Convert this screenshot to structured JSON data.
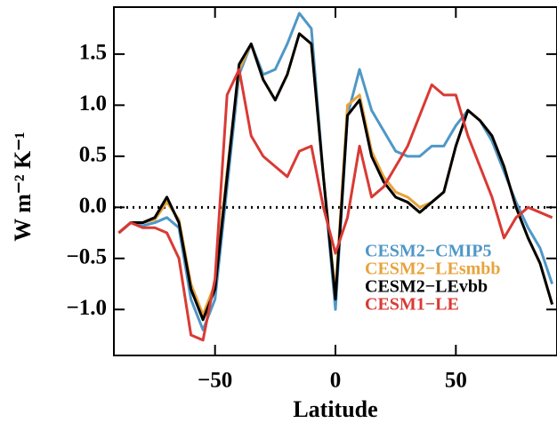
{
  "chart_data": {
    "type": "line",
    "xlabel": "Latitude",
    "ylabel": "W m⁻² K⁻¹",
    "x": [
      -90,
      -85,
      -80,
      -75,
      -70,
      -65,
      -60,
      -55,
      -50,
      -45,
      -40,
      -35,
      -30,
      -25,
      -20,
      -15,
      -10,
      -5,
      0,
      5,
      10,
      15,
      20,
      25,
      30,
      35,
      40,
      45,
      50,
      55,
      60,
      65,
      70,
      75,
      80,
      85,
      90
    ],
    "series": [
      {
        "name": "CESM2−CMIP5",
        "color": "#4f97c7",
        "values": [
          -0.25,
          -0.15,
          -0.18,
          -0.15,
          -0.1,
          -0.2,
          -0.9,
          -1.2,
          -0.9,
          0.2,
          1.3,
          1.6,
          1.3,
          1.35,
          1.6,
          1.9,
          1.75,
          0.3,
          -1.0,
          0.9,
          1.35,
          0.95,
          0.75,
          0.55,
          0.5,
          0.5,
          0.6,
          0.6,
          0.8,
          0.95,
          0.85,
          0.65,
          0.35,
          0.05,
          -0.2,
          -0.4,
          -0.75
        ]
      },
      {
        "name": "CESM2−LEsmbb",
        "color": "#e8a33c",
        "values": [
          -0.25,
          -0.15,
          -0.15,
          -0.12,
          0.05,
          -0.12,
          -0.75,
          -1.05,
          -0.75,
          0.35,
          1.35,
          1.6,
          1.25,
          1.05,
          1.3,
          1.7,
          1.6,
          0.3,
          -0.85,
          1.0,
          1.1,
          0.55,
          0.3,
          0.15,
          0.1,
          0.0,
          0.05,
          0.15,
          0.6,
          0.95,
          0.85,
          0.7,
          0.4,
          0.0,
          -0.3,
          -0.55,
          -0.95
        ]
      },
      {
        "name": "CESM2−LEvbb",
        "color": "#000000",
        "values": [
          -0.25,
          -0.15,
          -0.15,
          -0.1,
          0.1,
          -0.15,
          -0.8,
          -1.1,
          -0.8,
          0.3,
          1.4,
          1.6,
          1.25,
          1.05,
          1.3,
          1.7,
          1.6,
          0.3,
          -0.9,
          0.9,
          1.05,
          0.5,
          0.25,
          0.1,
          0.05,
          -0.05,
          0.05,
          0.15,
          0.6,
          0.95,
          0.85,
          0.7,
          0.4,
          0.0,
          -0.3,
          -0.55,
          -0.95
        ]
      },
      {
        "name": "CESM1−LE",
        "color": "#d93a34",
        "values": [
          -0.25,
          -0.15,
          -0.2,
          -0.2,
          -0.25,
          -0.5,
          -1.25,
          -1.3,
          -0.7,
          1.1,
          1.35,
          0.7,
          0.5,
          0.4,
          0.3,
          0.55,
          0.6,
          0.0,
          -0.45,
          -0.1,
          0.6,
          0.1,
          0.2,
          0.4,
          0.6,
          0.9,
          1.2,
          1.1,
          1.1,
          0.7,
          0.4,
          0.1,
          -0.3,
          -0.1,
          0.0,
          -0.05,
          -0.1
        ]
      }
    ],
    "xlim": [
      -92,
      92
    ],
    "ylim": [
      -1.45,
      1.96
    ],
    "xticks": [
      {
        "value": -50,
        "label": "−50"
      },
      0,
      50
    ],
    "yticks": [
      {
        "value": -1.0,
        "label": "−1.0"
      },
      {
        "value": -0.5,
        "label": "−0.5"
      },
      {
        "value": 0.0,
        "label": "0.0"
      },
      0.5,
      {
        "value": 1.0,
        "label": "1.0"
      },
      1.5
    ],
    "reference_line": 0,
    "legend": "lower right"
  }
}
